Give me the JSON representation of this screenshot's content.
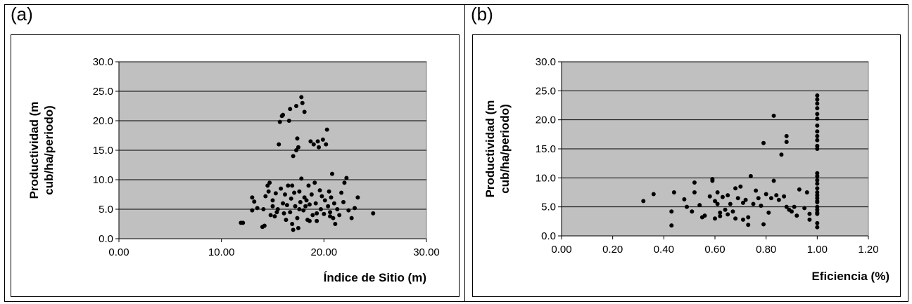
{
  "panels": [
    {
      "label": "(a)"
    },
    {
      "label": "(b)"
    }
  ],
  "chart_data": [
    {
      "type": "scatter",
      "xlabel": "Índice de Sitio (m)",
      "ylabel": "Productividad (m cub/ha/periodo)",
      "xlim": [
        0,
        30
      ],
      "ylim": [
        0,
        30
      ],
      "xticks": [
        "0.00",
        "10.00",
        "20.00",
        "30.00"
      ],
      "yticks": [
        "0.0",
        "5.0",
        "10.0",
        "15.0",
        "20.0",
        "25.0",
        "30.0"
      ],
      "grid": "horizontal",
      "plot_background": "#C0C0C0",
      "point_color": "#000000",
      "points": [
        [
          11.9,
          2.7
        ],
        [
          12.1,
          2.7
        ],
        [
          13.0,
          7.0
        ],
        [
          13.2,
          6.3
        ],
        [
          13.0,
          4.8
        ],
        [
          13.5,
          5.2
        ],
        [
          14.0,
          2.0
        ],
        [
          14.2,
          2.2
        ],
        [
          14.3,
          7.2
        ],
        [
          14.5,
          9.0
        ],
        [
          14.7,
          9.5
        ],
        [
          14.6,
          8.0
        ],
        [
          14.8,
          4.0
        ],
        [
          15.0,
          5.5
        ],
        [
          15.0,
          6.5
        ],
        [
          15.2,
          3.8
        ],
        [
          15.3,
          7.7
        ],
        [
          15.5,
          5.0
        ],
        [
          15.6,
          16.0
        ],
        [
          15.7,
          19.8
        ],
        [
          15.9,
          20.8
        ],
        [
          16.0,
          21.0
        ],
        [
          15.8,
          8.5
        ],
        [
          16.0,
          6.0
        ],
        [
          16.1,
          4.3
        ],
        [
          16.2,
          7.5
        ],
        [
          16.3,
          3.2
        ],
        [
          16.4,
          5.7
        ],
        [
          16.6,
          20.0
        ],
        [
          16.7,
          22.0
        ],
        [
          16.5,
          9.0
        ],
        [
          16.7,
          4.5
        ],
        [
          16.8,
          6.8
        ],
        [
          16.9,
          2.5
        ],
        [
          17.0,
          1.5
        ],
        [
          17.0,
          14.0
        ],
        [
          17.1,
          7.8
        ],
        [
          17.2,
          5.5
        ],
        [
          17.3,
          22.5
        ],
        [
          17.3,
          15.0
        ],
        [
          17.4,
          17.0
        ],
        [
          17.4,
          3.5
        ],
        [
          17.5,
          1.8
        ],
        [
          17.5,
          15.5
        ],
        [
          17.6,
          8.0
        ],
        [
          17.7,
          6.2
        ],
        [
          17.8,
          24.0
        ],
        [
          17.8,
          10.2
        ],
        [
          17.9,
          23.0
        ],
        [
          18.0,
          4.8
        ],
        [
          18.1,
          7.0
        ],
        [
          18.1,
          21.5
        ],
        [
          18.3,
          6.5
        ],
        [
          18.4,
          3.2
        ],
        [
          18.5,
          9.0
        ],
        [
          18.6,
          5.8
        ],
        [
          18.7,
          16.5
        ],
        [
          18.8,
          7.5
        ],
        [
          18.9,
          4.0
        ],
        [
          19.0,
          16.0
        ],
        [
          19.1,
          9.5
        ],
        [
          19.2,
          6.0
        ],
        [
          19.3,
          3.0
        ],
        [
          19.4,
          16.5
        ],
        [
          19.5,
          15.5
        ],
        [
          19.6,
          8.2
        ],
        [
          19.7,
          5.0
        ],
        [
          19.8,
          7.2
        ],
        [
          19.9,
          16.8
        ],
        [
          20.0,
          4.2
        ],
        [
          20.1,
          6.5
        ],
        [
          20.2,
          16.0
        ],
        [
          20.3,
          18.5
        ],
        [
          20.4,
          5.5
        ],
        [
          20.5,
          8.0
        ],
        [
          20.6,
          4.5
        ],
        [
          20.7,
          7.0
        ],
        [
          20.8,
          11.0
        ],
        [
          20.9,
          3.5
        ],
        [
          21.0,
          6.0
        ],
        [
          21.1,
          2.5
        ],
        [
          21.3,
          5.0
        ],
        [
          21.5,
          4.0
        ],
        [
          21.7,
          7.8
        ],
        [
          21.9,
          6.2
        ],
        [
          22.0,
          9.5
        ],
        [
          22.2,
          10.3
        ],
        [
          22.4,
          4.8
        ],
        [
          22.7,
          3.5
        ],
        [
          23.0,
          5.2
        ],
        [
          23.3,
          7.0
        ],
        [
          24.8,
          4.3
        ],
        [
          14.1,
          5.0
        ],
        [
          15.4,
          4.5
        ],
        [
          16.9,
          9.0
        ],
        [
          18.6,
          3.0
        ],
        [
          19.3,
          4.3
        ],
        [
          20.6,
          3.8
        ],
        [
          17.6,
          5.0
        ],
        [
          18.2,
          5.5
        ]
      ]
    },
    {
      "type": "scatter",
      "xlabel": "Eficiencia (%)",
      "ylabel": "Productividad (m cub/ha/periodo)",
      "xlim": [
        0,
        1.2
      ],
      "ylim": [
        0,
        30
      ],
      "xticks": [
        "0.00",
        "0.20",
        "0.40",
        "0.60",
        "0.80",
        "1.00",
        "1.20"
      ],
      "yticks": [
        "0.0",
        "5.0",
        "10.0",
        "15.0",
        "20.0",
        "25.0",
        "30.0"
      ],
      "grid": "horizontal",
      "plot_background": "#C0C0C0",
      "point_color": "#000000",
      "points": [
        [
          0.32,
          6.0
        ],
        [
          0.36,
          7.2
        ],
        [
          0.43,
          1.8
        ],
        [
          0.43,
          4.2
        ],
        [
          0.44,
          7.5
        ],
        [
          0.48,
          6.3
        ],
        [
          0.49,
          5.0
        ],
        [
          0.51,
          4.2
        ],
        [
          0.52,
          9.2
        ],
        [
          0.52,
          7.5
        ],
        [
          0.54,
          5.3
        ],
        [
          0.55,
          3.2
        ],
        [
          0.56,
          3.5
        ],
        [
          0.58,
          6.8
        ],
        [
          0.59,
          9.5
        ],
        [
          0.59,
          9.8
        ],
        [
          0.6,
          6.0
        ],
        [
          0.6,
          3.0
        ],
        [
          0.61,
          7.5
        ],
        [
          0.61,
          5.5
        ],
        [
          0.62,
          4.0
        ],
        [
          0.62,
          3.4
        ],
        [
          0.63,
          6.7
        ],
        [
          0.64,
          4.5
        ],
        [
          0.65,
          3.7
        ],
        [
          0.65,
          7.0
        ],
        [
          0.66,
          5.5
        ],
        [
          0.67,
          4.2
        ],
        [
          0.68,
          3.0
        ],
        [
          0.68,
          8.2
        ],
        [
          0.69,
          6.5
        ],
        [
          0.7,
          8.5
        ],
        [
          0.71,
          2.8
        ],
        [
          0.71,
          5.7
        ],
        [
          0.72,
          6.2
        ],
        [
          0.73,
          1.9
        ],
        [
          0.73,
          3.2
        ],
        [
          0.74,
          10.3
        ],
        [
          0.75,
          5.5
        ],
        [
          0.76,
          7.8
        ],
        [
          0.77,
          6.5
        ],
        [
          0.78,
          5.2
        ],
        [
          0.79,
          2.0
        ],
        [
          0.79,
          16.0
        ],
        [
          0.8,
          7.2
        ],
        [
          0.81,
          4.0
        ],
        [
          0.82,
          6.5
        ],
        [
          0.83,
          20.7
        ],
        [
          0.83,
          9.5
        ],
        [
          0.84,
          7.0
        ],
        [
          0.85,
          6.2
        ],
        [
          0.86,
          14.0
        ],
        [
          0.87,
          6.8
        ],
        [
          0.88,
          16.2
        ],
        [
          0.88,
          17.2
        ],
        [
          0.88,
          5.0
        ],
        [
          0.89,
          4.5
        ],
        [
          0.9,
          4.2
        ],
        [
          0.91,
          5.0
        ],
        [
          0.92,
          3.5
        ],
        [
          0.93,
          8.0
        ],
        [
          0.95,
          4.8
        ],
        [
          0.96,
          7.5
        ],
        [
          0.97,
          2.8
        ],
        [
          0.97,
          3.8
        ],
        [
          1.0,
          1.5
        ],
        [
          1.0,
          2.2
        ],
        [
          1.0,
          3.8
        ],
        [
          1.0,
          4.5
        ],
        [
          1.0,
          5.0
        ],
        [
          1.0,
          5.8
        ],
        [
          1.0,
          6.5
        ],
        [
          1.0,
          7.0
        ],
        [
          1.0,
          7.5
        ],
        [
          1.0,
          8.2
        ],
        [
          1.0,
          9.0
        ],
        [
          1.0,
          9.6
        ],
        [
          1.0,
          10.3
        ],
        [
          1.0,
          10.8
        ],
        [
          1.0,
          15.0
        ],
        [
          1.0,
          15.5
        ],
        [
          1.0,
          16.5
        ],
        [
          1.0,
          17.2
        ],
        [
          1.0,
          18.0
        ],
        [
          1.0,
          19.0
        ],
        [
          1.0,
          20.2
        ],
        [
          1.0,
          21.0
        ],
        [
          1.0,
          22.0
        ],
        [
          1.0,
          22.8
        ],
        [
          1.0,
          23.5
        ],
        [
          1.0,
          24.2
        ],
        [
          1.0,
          6.0
        ],
        [
          1.0,
          4.0
        ]
      ]
    }
  ]
}
